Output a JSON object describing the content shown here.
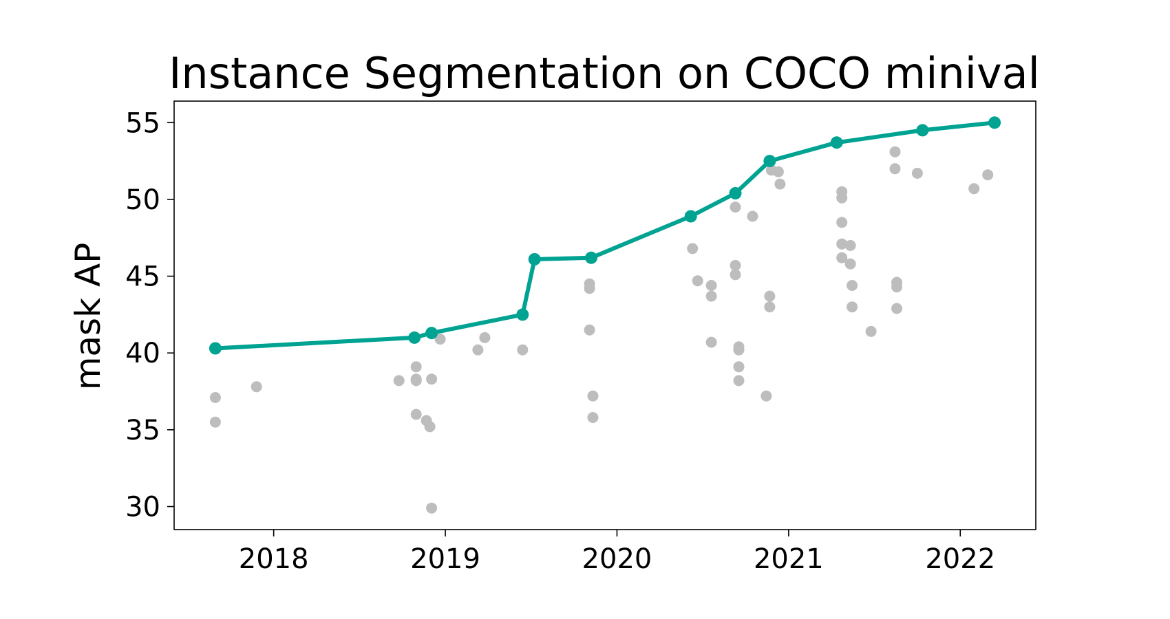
{
  "chart_data": {
    "type": "scatter",
    "title": "Instance Segmentation on COCO minival",
    "xlabel": "",
    "ylabel": "mask AP",
    "xlim": [
      2017.42,
      2022.44
    ],
    "ylim": [
      28.5,
      56.4
    ],
    "x_ticks": [
      2018,
      2019,
      2020,
      2021,
      2022
    ],
    "x_tick_labels": [
      "2018",
      "2019",
      "2020",
      "2021",
      "2022"
    ],
    "y_ticks": [
      30,
      35,
      40,
      45,
      50,
      55
    ],
    "y_tick_labels": [
      "30",
      "35",
      "40",
      "45",
      "50",
      "55"
    ],
    "grid": false,
    "colors": {
      "frontier": "#00a392",
      "other": "#bdbdbd"
    },
    "series": [
      {
        "kind": "line+markers",
        "color": "#00a392",
        "x": [
          2017.66,
          2018.82,
          2018.92,
          2019.45,
          2019.52,
          2019.85,
          2020.43,
          2020.69,
          2020.89,
          2021.28,
          2021.78,
          2022.2
        ],
        "y": [
          40.3,
          41.0,
          41.3,
          42.5,
          46.1,
          46.2,
          48.9,
          50.4,
          52.5,
          53.7,
          54.5,
          55.0
        ]
      },
      {
        "kind": "scatter",
        "color": "#bdbdbd",
        "x": [
          2017.66,
          2017.66,
          2017.9,
          2018.73,
          2018.83,
          2018.83,
          2018.83,
          2018.83,
          2018.89,
          2018.91,
          2018.92,
          2018.92,
          2018.97,
          2019.19,
          2019.23,
          2019.45,
          2019.84,
          2019.84,
          2019.84,
          2019.86,
          2019.86,
          2020.44,
          2020.47,
          2020.55,
          2020.55,
          2020.55,
          2020.69,
          2020.69,
          2020.69,
          2020.71,
          2020.71,
          2020.71,
          2020.71,
          2020.79,
          2020.87,
          2020.89,
          2020.89,
          2020.9,
          2020.94,
          2020.95,
          2021.31,
          2021.31,
          2021.31,
          2021.31,
          2021.31,
          2021.36,
          2021.36,
          2021.37,
          2021.37,
          2021.48,
          2021.62,
          2021.62,
          2021.63,
          2021.63,
          2021.63,
          2021.75,
          2022.08,
          2022.16
        ],
        "y": [
          37.1,
          35.5,
          37.8,
          38.2,
          39.1,
          38.2,
          36.0,
          38.3,
          35.6,
          35.2,
          29.9,
          38.3,
          40.9,
          40.2,
          41.0,
          40.2,
          44.5,
          44.2,
          41.5,
          37.2,
          35.8,
          46.8,
          44.7,
          44.4,
          43.7,
          40.7,
          49.5,
          45.7,
          45.1,
          40.4,
          40.2,
          39.1,
          38.2,
          48.9,
          37.2,
          43.7,
          43.0,
          51.9,
          51.8,
          51.0,
          50.5,
          50.1,
          48.5,
          47.1,
          46.2,
          47.0,
          45.8,
          44.4,
          43.0,
          41.4,
          53.1,
          52.0,
          44.6,
          44.3,
          42.9,
          51.7,
          50.7,
          51.6
        ]
      }
    ]
  }
}
